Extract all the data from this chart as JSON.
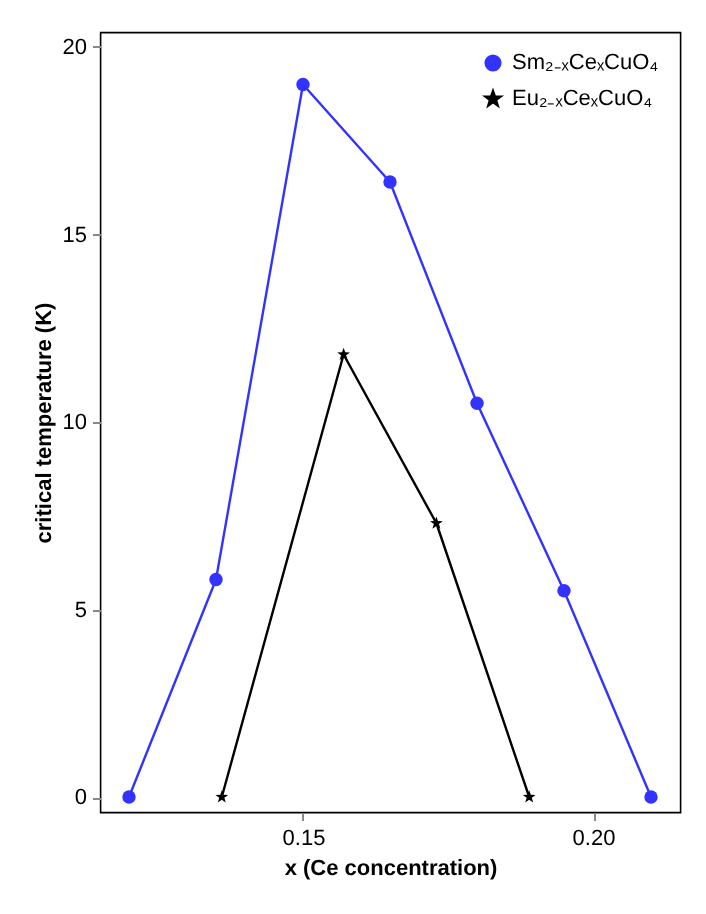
{
  "chart_data": {
    "type": "line",
    "xlabel": "x (Ce concentration)",
    "ylabel": "critical temperature (K)",
    "xlim": [
      0.115,
      0.215
    ],
    "ylim": [
      -0.4,
      20.4
    ],
    "xticks": [
      {
        "value": 0.15,
        "label": "0.15"
      },
      {
        "value": 0.2,
        "label": "0.20"
      }
    ],
    "yticks": [
      0,
      5,
      10,
      15,
      20
    ],
    "legend": "top right",
    "grid": false,
    "line_style": "solid",
    "series": [
      {
        "name": "Sm₂₋ₓCeₓCuO₄",
        "color": "#3333ff",
        "marker": "circle",
        "x": [
          0.12,
          0.135,
          0.15,
          0.165,
          0.18,
          0.195,
          0.21
        ],
        "values": [
          0,
          5.8,
          19,
          16.4,
          10.5,
          5.5,
          0
        ]
      },
      {
        "name": "Eu₂₋ₓCeₓCuO₄",
        "color": "#000000",
        "marker": "star",
        "x": [
          0.136,
          0.157,
          0.173,
          0.189
        ],
        "values": [
          0,
          11.8,
          7.3,
          0
        ]
      }
    ]
  }
}
